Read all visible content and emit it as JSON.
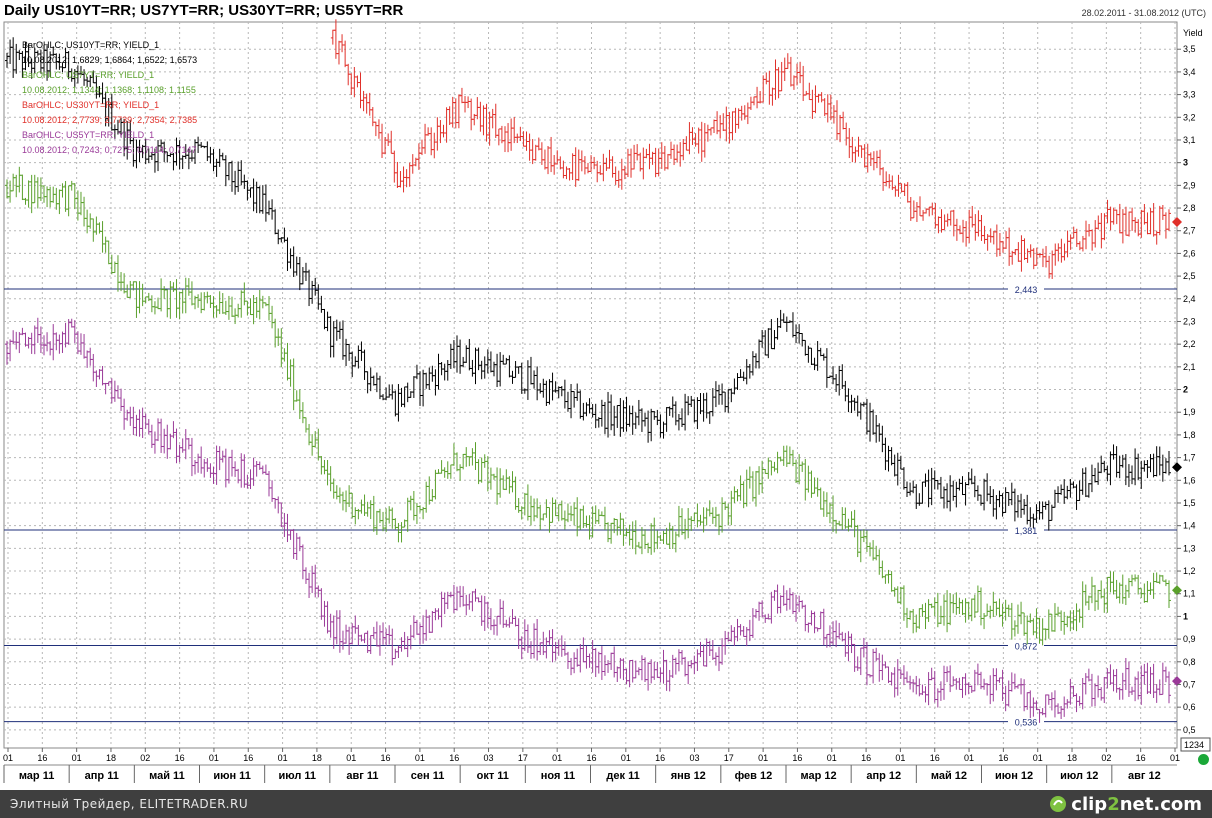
{
  "header": {
    "title": "Daily US10YT=RR; US7YT=RR; US30YT=RR; US5YT=RR",
    "date_range": "28.02.2011 - 31.08.2012 (UTC)"
  },
  "footer": {
    "credit": "Элитный Трейдер, ELITETRADER.RU",
    "logo_left": "clip",
    "logo_mid": "2",
    "logo_right": "net.com"
  },
  "chart_data": {
    "type": "ohlc",
    "ylabel": "Yield",
    "ylim": [
      0.42,
      3.62
    ],
    "y_ticks": [
      "0,5",
      "0,6",
      "0,7",
      "0,8",
      "0,9",
      "1",
      "1,1",
      "1,2",
      "1,3",
      "1,4",
      "1,5",
      "1,6",
      "1,7",
      "1,8",
      "1,9",
      "2",
      "2,1",
      "2,2",
      "2,3",
      "2,4",
      "2,5",
      "2,6",
      "2,7",
      "2,8",
      "2,9",
      "3",
      "3,1",
      "3,2",
      "3,3",
      "3,4",
      "3,5"
    ],
    "y_tick_values": [
      0.5,
      0.6,
      0.7,
      0.8,
      0.9,
      1.0,
      1.1,
      1.2,
      1.3,
      1.4,
      1.5,
      1.6,
      1.7,
      1.8,
      1.9,
      2.0,
      2.1,
      2.2,
      2.3,
      2.4,
      2.5,
      2.6,
      2.7,
      2.8,
      2.9,
      3.0,
      3.1,
      3.2,
      3.3,
      3.4,
      3.5
    ],
    "y_ticks_bold": [
      "1",
      "2",
      "3"
    ],
    "x_day_ticks": [
      "01",
      "16",
      "01",
      "18",
      "02",
      "16",
      "01",
      "16",
      "01",
      "18",
      "01",
      "16",
      "01",
      "16",
      "03",
      "17",
      "01",
      "16",
      "01",
      "16",
      "03",
      "17",
      "01",
      "16",
      "01",
      "16",
      "01",
      "16",
      "01",
      "16",
      "01",
      "18",
      "02",
      "16",
      "01"
    ],
    "x_month_labels": [
      "мар 11",
      "апр 11",
      "май 11",
      "июн 11",
      "июл 11",
      "авг 11",
      "сен 11",
      "окт 11",
      "ноя 11",
      "дек 11",
      "янв 12",
      "фев 12",
      "мар 12",
      "апр 12",
      "май 12",
      "июн 12",
      "июл 12",
      "авг 12"
    ],
    "x_value_box": "1234",
    "horizontal_lines": [
      {
        "value": 2.443,
        "label": "2,443"
      },
      {
        "value": 1.381,
        "label": "1,381"
      },
      {
        "value": 0.872,
        "label": "0,872"
      },
      {
        "value": 0.536,
        "label": "0,536"
      }
    ],
    "legend": [
      {
        "title": "BarOHLC; US10YT=RR; YIELD_1",
        "values": "10.08.2012; 1,6829; 1,6864; 1,6522; 1,6573",
        "color": "#000000"
      },
      {
        "title": "BarOHLC; US7YT=RR; YIELD_1",
        "values": "10.08.2012; 1,1344; 1,1368; 1,1108; 1,1155",
        "color": "#5aa02c"
      },
      {
        "title": "BarOHLC; US30YT=RR; YIELD_1",
        "values": "10.08.2012; 2,7739; 2,7739; 2,7354; 2,7385",
        "color": "#e0302a"
      },
      {
        "title": "BarOHLC; US5YT=RR; YIELD_1",
        "values": "10.08.2012; 0,7243; 0,7275; 0,7114; 0,7147",
        "color": "#9a3a98"
      }
    ],
    "series": [
      {
        "name": "US10YT=RR",
        "color": "#000000",
        "last": 1.6573,
        "months": [
          "2011-03",
          "2011-04",
          "2011-05",
          "2011-06",
          "2011-07",
          "2011-08",
          "2011-09",
          "2011-10",
          "2011-11",
          "2011-12",
          "2012-01",
          "2012-02",
          "2012-03",
          "2012-04",
          "2012-05",
          "2012-06",
          "2012-07",
          "2012-08"
        ],
        "closes": [
          3.45,
          3.43,
          3.05,
          3.05,
          2.8,
          2.25,
          1.95,
          2.15,
          2.05,
          1.9,
          1.85,
          1.95,
          2.3,
          2.0,
          1.55,
          1.55,
          1.45,
          1.66
        ]
      },
      {
        "name": "US7YT=RR",
        "color": "#5aa02c",
        "last": 1.1155,
        "months": [
          "2011-03",
          "2011-04",
          "2011-05",
          "2011-06",
          "2011-07",
          "2011-08",
          "2011-09",
          "2011-10",
          "2011-11",
          "2011-12",
          "2012-01",
          "2012-02",
          "2012-03",
          "2012-04",
          "2012-05",
          "2012-06",
          "2012-07",
          "2012-08"
        ],
        "closes": [
          2.9,
          2.85,
          2.4,
          2.4,
          2.35,
          1.55,
          1.4,
          1.7,
          1.5,
          1.4,
          1.35,
          1.45,
          1.7,
          1.4,
          1.0,
          1.05,
          0.95,
          1.12
        ]
      },
      {
        "name": "US30YT=RR",
        "color": "#e0302a",
        "last": 2.7385,
        "months": [
          "2011-08",
          "2011-09",
          "2011-10",
          "2011-11",
          "2011-12",
          "2012-01",
          "2012-02",
          "2012-03",
          "2012-04",
          "2012-05",
          "2012-06",
          "2012-07",
          "2012-08"
        ],
        "closes": [
          3.55,
          2.95,
          3.25,
          3.05,
          2.95,
          3.0,
          3.15,
          3.4,
          3.1,
          2.8,
          2.7,
          2.55,
          2.74
        ]
      },
      {
        "name": "US5YT=RR",
        "color": "#9a3a98",
        "last": 0.7147,
        "months": [
          "2011-03",
          "2011-04",
          "2011-05",
          "2011-06",
          "2011-07",
          "2011-08",
          "2011-09",
          "2011-10",
          "2011-11",
          "2011-12",
          "2012-01",
          "2012-02",
          "2012-03",
          "2012-04",
          "2012-05",
          "2012-06",
          "2012-07",
          "2012-08"
        ],
        "closes": [
          2.2,
          2.25,
          1.85,
          1.7,
          1.6,
          0.95,
          0.85,
          1.1,
          0.9,
          0.8,
          0.75,
          0.85,
          1.1,
          0.85,
          0.68,
          0.72,
          0.6,
          0.71
        ]
      }
    ]
  }
}
